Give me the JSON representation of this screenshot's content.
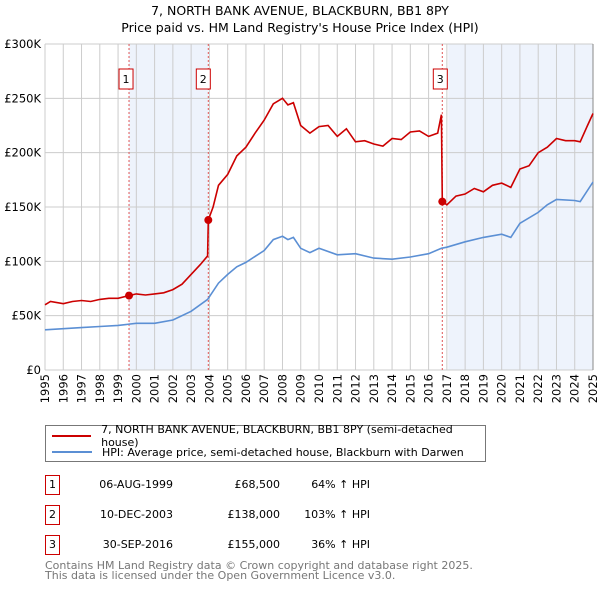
{
  "title_line1": "7, NORTH BANK AVENUE, BLACKBURN, BB1 8PY",
  "title_line2": "Price paid vs. HM Land Registry's House Price Index (HPI)",
  "colors": {
    "price": "#cc0000",
    "hpi": "#5b8fd4",
    "shade": "#eef3fc",
    "grid": "#cccccc"
  },
  "chart_data": {
    "type": "line",
    "title": "7, NORTH BANK AVENUE, BLACKBURN, BB1 8PY — Price paid vs. HM Land Registry's House Price Index (HPI)",
    "xlim": [
      1995,
      2025
    ],
    "ylim": [
      0,
      300000
    ],
    "x_ticks": [
      "1995",
      "1996",
      "1997",
      "1998",
      "1999",
      "2000",
      "2001",
      "2002",
      "2003",
      "2004",
      "2005",
      "2006",
      "2007",
      "2008",
      "2009",
      "2010",
      "2011",
      "2012",
      "2013",
      "2014",
      "2015",
      "2016",
      "2017",
      "2018",
      "2019",
      "2020",
      "2021",
      "2022",
      "2023",
      "2024",
      "2025"
    ],
    "y_ticks": [
      {
        "v": 0,
        "label": "£0"
      },
      {
        "v": 50000,
        "label": "£50K"
      },
      {
        "v": 100000,
        "label": "£100K"
      },
      {
        "v": 150000,
        "label": "£150K"
      },
      {
        "v": 200000,
        "label": "£200K"
      },
      {
        "v": 250000,
        "label": "£250K"
      },
      {
        "v": 300000,
        "label": "£300K"
      }
    ],
    "grid": true,
    "series": [
      {
        "name": "7, NORTH BANK AVENUE, BLACKBURN, BB1 8PY (semi-detached house)",
        "color": "#cc0000",
        "points": [
          [
            1995,
            60
          ],
          [
            1995.3,
            63
          ],
          [
            1996,
            61
          ],
          [
            1996.5,
            63
          ],
          [
            1997,
            64
          ],
          [
            1997.5,
            63
          ],
          [
            1998,
            65
          ],
          [
            1998.5,
            66
          ],
          [
            1999,
            66
          ],
          [
            1999.6,
            68.5
          ],
          [
            2000,
            70
          ],
          [
            2000.5,
            69
          ],
          [
            2001,
            70
          ],
          [
            2001.5,
            71
          ],
          [
            2002,
            74
          ],
          [
            2002.5,
            79
          ],
          [
            2003,
            88
          ],
          [
            2003.5,
            97
          ],
          [
            2003.9,
            105
          ],
          [
            2003.94,
            138
          ],
          [
            2004.2,
            150
          ],
          [
            2004.5,
            170
          ],
          [
            2005,
            180
          ],
          [
            2005.5,
            197
          ],
          [
            2006,
            205
          ],
          [
            2006.5,
            218
          ],
          [
            2007,
            230
          ],
          [
            2007.5,
            245
          ],
          [
            2008,
            250
          ],
          [
            2008.3,
            244
          ],
          [
            2008.6,
            246
          ],
          [
            2009,
            225
          ],
          [
            2009.5,
            218
          ],
          [
            2010,
            224
          ],
          [
            2010.5,
            225
          ],
          [
            2011,
            215
          ],
          [
            2011.5,
            222
          ],
          [
            2012,
            210
          ],
          [
            2012.5,
            211
          ],
          [
            2013,
            208
          ],
          [
            2013.5,
            206
          ],
          [
            2014,
            213
          ],
          [
            2014.5,
            212
          ],
          [
            2015,
            219
          ],
          [
            2015.5,
            220
          ],
          [
            2016,
            215
          ],
          [
            2016.5,
            218
          ],
          [
            2016.7,
            235
          ],
          [
            2016.75,
            155
          ],
          [
            2017,
            152
          ],
          [
            2017.5,
            160
          ],
          [
            2018,
            162
          ],
          [
            2018.5,
            167
          ],
          [
            2019,
            164
          ],
          [
            2019.5,
            170
          ],
          [
            2020,
            172
          ],
          [
            2020.5,
            168
          ],
          [
            2021,
            185
          ],
          [
            2021.5,
            188
          ],
          [
            2022,
            200
          ],
          [
            2022.5,
            205
          ],
          [
            2023,
            213
          ],
          [
            2023.5,
            211
          ],
          [
            2024,
            211
          ],
          [
            2024.3,
            210
          ],
          [
            2024.7,
            225
          ],
          [
            2025,
            236
          ]
        ]
      },
      {
        "name": "HPI: Average price, semi-detached house, Blackburn with Darwen",
        "color": "#5b8fd4",
        "points": [
          [
            1995,
            37
          ],
          [
            1996,
            38
          ],
          [
            1997,
            39
          ],
          [
            1998,
            40
          ],
          [
            1999,
            41
          ],
          [
            2000,
            43
          ],
          [
            2001,
            43
          ],
          [
            2002,
            46
          ],
          [
            2003,
            54
          ],
          [
            2003.9,
            65
          ],
          [
            2004.5,
            80
          ],
          [
            2005,
            88
          ],
          [
            2005.5,
            95
          ],
          [
            2006,
            99
          ],
          [
            2007,
            110
          ],
          [
            2007.5,
            120
          ],
          [
            2008,
            123
          ],
          [
            2008.3,
            120
          ],
          [
            2008.6,
            122
          ],
          [
            2009,
            112
          ],
          [
            2009.5,
            108
          ],
          [
            2010,
            112
          ],
          [
            2011,
            106
          ],
          [
            2012,
            107
          ],
          [
            2013,
            103
          ],
          [
            2014,
            102
          ],
          [
            2015,
            104
          ],
          [
            2016,
            107
          ],
          [
            2016.7,
            112
          ],
          [
            2017,
            113
          ],
          [
            2018,
            118
          ],
          [
            2019,
            122
          ],
          [
            2020,
            125
          ],
          [
            2020.5,
            122
          ],
          [
            2021,
            135
          ],
          [
            2022,
            145
          ],
          [
            2022.5,
            152
          ],
          [
            2023,
            157
          ],
          [
            2024,
            156
          ],
          [
            2024.3,
            155
          ],
          [
            2025,
            173
          ]
        ]
      }
    ],
    "y_units_note": "points in £ thousands",
    "sales": [
      {
        "label": "1",
        "x": 1999.6,
        "value": 68500
      },
      {
        "label": "2",
        "x": 2003.94,
        "value": 138000
      },
      {
        "label": "3",
        "x": 2016.75,
        "value": 155000
      }
    ],
    "legend_placement": "below"
  },
  "legend": {
    "price": "7, NORTH BANK AVENUE, BLACKBURN, BB1 8PY (semi-detached house)",
    "hpi": "HPI: Average price, semi-detached house, Blackburn with Darwen"
  },
  "transactions": [
    {
      "num": "1",
      "date": "06-AUG-1999",
      "price": "£68,500",
      "hpi": "64% ↑ HPI"
    },
    {
      "num": "2",
      "date": "10-DEC-2003",
      "price": "£138,000",
      "hpi": "103% ↑ HPI"
    },
    {
      "num": "3",
      "date": "30-SEP-2016",
      "price": "£155,000",
      "hpi": "36% ↑ HPI"
    }
  ],
  "footer_line1": "Contains HM Land Registry data © Crown copyright and database right 2025.",
  "footer_line2": "This data is licensed under the Open Government Licence v3.0."
}
